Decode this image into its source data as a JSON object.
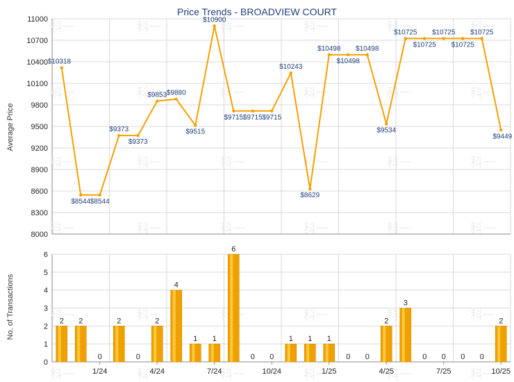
{
  "title": "Price Trends - BROADVIEW COURT",
  "watermark": "科一",
  "colors": {
    "line": "#f5a000",
    "bar": "#f0a000",
    "text": "#1f3f7a"
  },
  "chart_data": [
    {
      "type": "line",
      "ylabel": "Average Price",
      "ylim": [
        8000,
        11000
      ],
      "yticks": [
        "11000",
        "10700",
        "10400",
        "10100",
        "9800",
        "9500",
        "9200",
        "8900",
        "8600",
        "8300",
        "8000"
      ],
      "grid": true,
      "values": [
        10318,
        8544,
        8544,
        9373,
        9373,
        9853,
        9880,
        9515,
        10900,
        9715,
        9715,
        9715,
        10243,
        8629,
        10498,
        10498,
        10498,
        9534,
        10725,
        10725,
        10725,
        10725,
        10725,
        9449
      ],
      "labels": [
        "$10318",
        "$8544",
        "$8544",
        "$9373",
        "$9373",
        "$9853",
        "$9880",
        "$9515",
        "$10900",
        "$9715",
        "$9715",
        "$9715",
        "$10243",
        "$8629",
        "$10498",
        "$10498",
        "$10498",
        "$9534",
        "$10725",
        "$10725",
        "$10725",
        "$10725",
        "$10725",
        "$9449"
      ]
    },
    {
      "type": "bar",
      "ylabel": "No. of Transactions",
      "ylim": [
        0,
        6
      ],
      "yticks": [
        "6",
        "5",
        "4",
        "3",
        "2",
        "1",
        "0"
      ],
      "grid": true,
      "values": [
        2,
        2,
        0,
        2,
        0,
        2,
        4,
        1,
        1,
        6,
        0,
        0,
        1,
        1,
        1,
        0,
        0,
        2,
        3,
        0,
        0,
        0,
        0,
        2
      ]
    }
  ],
  "x_tick_labels": [
    "1/24",
    "4/24",
    "7/24",
    "10/24",
    "1/25",
    "4/25",
    "7/25",
    "10/25"
  ]
}
